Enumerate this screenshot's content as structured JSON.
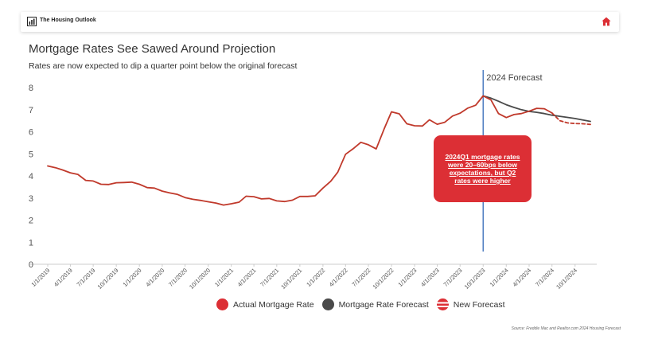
{
  "header": {
    "brand": "The Housing Outlook",
    "logo_icon": "chart-bar-icon",
    "home_icon": "home-icon",
    "home_color": "#dc2f35"
  },
  "title": "Mortgage Rates See Sawed Around Projection",
  "subtitle": "Rates are now expected to dip a quarter point below the original forecast",
  "source": "Source: Freddie Mac and Realtor.com 2024 Housing Forecast",
  "callout": {
    "text": "2024Q1 mortgage rates were 20–60bps below expectations, but Q2 rates were higher",
    "color": "#dc2f35"
  },
  "legend": [
    {
      "label": "Actual Mortgage Rate",
      "color": "#dc2f35",
      "style": "filled-circle"
    },
    {
      "label": "Mortgage Rate Forecast",
      "color": "#4a4a4a",
      "style": "filled-circle"
    },
    {
      "label": "New Forecast",
      "color": "#dc2f35",
      "style": "striped-circle"
    }
  ],
  "chart_data": {
    "type": "line",
    "ylim": [
      0,
      8
    ],
    "yticks": [
      0,
      1,
      2,
      3,
      4,
      5,
      6,
      7,
      8
    ],
    "grid": false,
    "xtick_labels": [
      "1/1/2019",
      "4/1/2019",
      "7/1/2019",
      "10/1/2019",
      "1/1/2020",
      "4/1/2020",
      "7/1/2020",
      "10/1/2020",
      "1/1/2021",
      "4/1/2021",
      "7/1/2021",
      "10/1/2021",
      "1/1/2022",
      "4/1/2022",
      "7/1/2022",
      "10/1/2022",
      "1/1/2023",
      "4/1/2023",
      "7/1/2023",
      "10/1/2023",
      "1/1/2024",
      "4/1/2024",
      "7/1/2024",
      "10/1/2024"
    ],
    "vertical_marker": {
      "label": "2024 Forecast",
      "x": "10/1/2023",
      "color": "#4f7ec2"
    },
    "series": [
      {
        "name": "Actual Mortgage Rate",
        "color": "#c0392b",
        "dash": false,
        "points": [
          [
            "1/1/2019",
            4.45
          ],
          [
            "2/1/2019",
            4.37
          ],
          [
            "3/1/2019",
            4.27
          ],
          [
            "4/1/2019",
            4.14
          ],
          [
            "5/1/2019",
            4.07
          ],
          [
            "6/1/2019",
            3.8
          ],
          [
            "7/1/2019",
            3.77
          ],
          [
            "8/1/2019",
            3.62
          ],
          [
            "9/1/2019",
            3.61
          ],
          [
            "10/1/2019",
            3.69
          ],
          [
            "11/1/2019",
            3.7
          ],
          [
            "12/1/2019",
            3.72
          ],
          [
            "1/1/2020",
            3.62
          ],
          [
            "2/1/2020",
            3.47
          ],
          [
            "3/1/2020",
            3.45
          ],
          [
            "4/1/2020",
            3.31
          ],
          [
            "5/1/2020",
            3.23
          ],
          [
            "6/1/2020",
            3.16
          ],
          [
            "7/1/2020",
            3.02
          ],
          [
            "8/1/2020",
            2.94
          ],
          [
            "9/1/2020",
            2.89
          ],
          [
            "10/1/2020",
            2.83
          ],
          [
            "11/1/2020",
            2.77
          ],
          [
            "12/1/2020",
            2.68
          ],
          [
            "1/1/2021",
            2.74
          ],
          [
            "2/1/2021",
            2.81
          ],
          [
            "3/1/2021",
            3.08
          ],
          [
            "4/1/2021",
            3.06
          ],
          [
            "5/1/2021",
            2.96
          ],
          [
            "6/1/2021",
            2.98
          ],
          [
            "7/1/2021",
            2.87
          ],
          [
            "8/1/2021",
            2.84
          ],
          [
            "9/1/2021",
            2.9
          ],
          [
            "10/1/2021",
            3.07
          ],
          [
            "11/1/2021",
            3.07
          ],
          [
            "12/1/2021",
            3.1
          ],
          [
            "1/1/2022",
            3.45
          ],
          [
            "2/1/2022",
            3.76
          ],
          [
            "3/1/2022",
            4.17
          ],
          [
            "4/1/2022",
            4.98
          ],
          [
            "5/1/2022",
            5.23
          ],
          [
            "6/1/2022",
            5.52
          ],
          [
            "7/1/2022",
            5.41
          ],
          [
            "8/1/2022",
            5.22
          ],
          [
            "9/1/2022",
            6.11
          ],
          [
            "10/1/2022",
            6.9
          ],
          [
            "11/1/2022",
            6.81
          ],
          [
            "12/1/2022",
            6.36
          ],
          [
            "1/1/2023",
            6.27
          ],
          [
            "2/1/2023",
            6.26
          ],
          [
            "3/1/2023",
            6.54
          ],
          [
            "4/1/2023",
            6.34
          ],
          [
            "5/1/2023",
            6.43
          ],
          [
            "6/1/2023",
            6.71
          ],
          [
            "7/1/2023",
            6.84
          ],
          [
            "8/1/2023",
            7.07
          ],
          [
            "9/1/2023",
            7.2
          ],
          [
            "10/1/2023",
            7.62
          ],
          [
            "11/1/2023",
            7.44
          ],
          [
            "12/1/2023",
            6.82
          ],
          [
            "1/1/2024",
            6.64
          ],
          [
            "2/1/2024",
            6.78
          ],
          [
            "3/1/2024",
            6.82
          ],
          [
            "4/1/2024",
            6.93
          ],
          [
            "5/1/2024",
            7.06
          ],
          [
            "6/1/2024",
            7.04
          ],
          [
            "7/1/2024",
            6.85
          ]
        ]
      },
      {
        "name": "Mortgage Rate Forecast",
        "color": "#4a4a4a",
        "dash": false,
        "points": [
          [
            "10/1/2023",
            7.62
          ],
          [
            "11/1/2023",
            7.52
          ],
          [
            "12/1/2023",
            7.38
          ],
          [
            "1/1/2024",
            7.22
          ],
          [
            "2/1/2024",
            7.1
          ],
          [
            "3/1/2024",
            7.0
          ],
          [
            "4/1/2024",
            6.92
          ],
          [
            "5/1/2024",
            6.88
          ],
          [
            "6/1/2024",
            6.82
          ],
          [
            "7/1/2024",
            6.75
          ],
          [
            "8/1/2024",
            6.7
          ],
          [
            "9/1/2024",
            6.65
          ],
          [
            "10/1/2024",
            6.6
          ],
          [
            "11/1/2024",
            6.53
          ],
          [
            "12/1/2024",
            6.47
          ]
        ]
      },
      {
        "name": "New Forecast",
        "color": "#c0392b",
        "dash": true,
        "points": [
          [
            "7/1/2024",
            6.85
          ],
          [
            "8/1/2024",
            6.5
          ],
          [
            "9/1/2024",
            6.4
          ],
          [
            "10/1/2024",
            6.37
          ],
          [
            "11/1/2024",
            6.36
          ],
          [
            "12/1/2024",
            6.33
          ]
        ]
      }
    ]
  }
}
